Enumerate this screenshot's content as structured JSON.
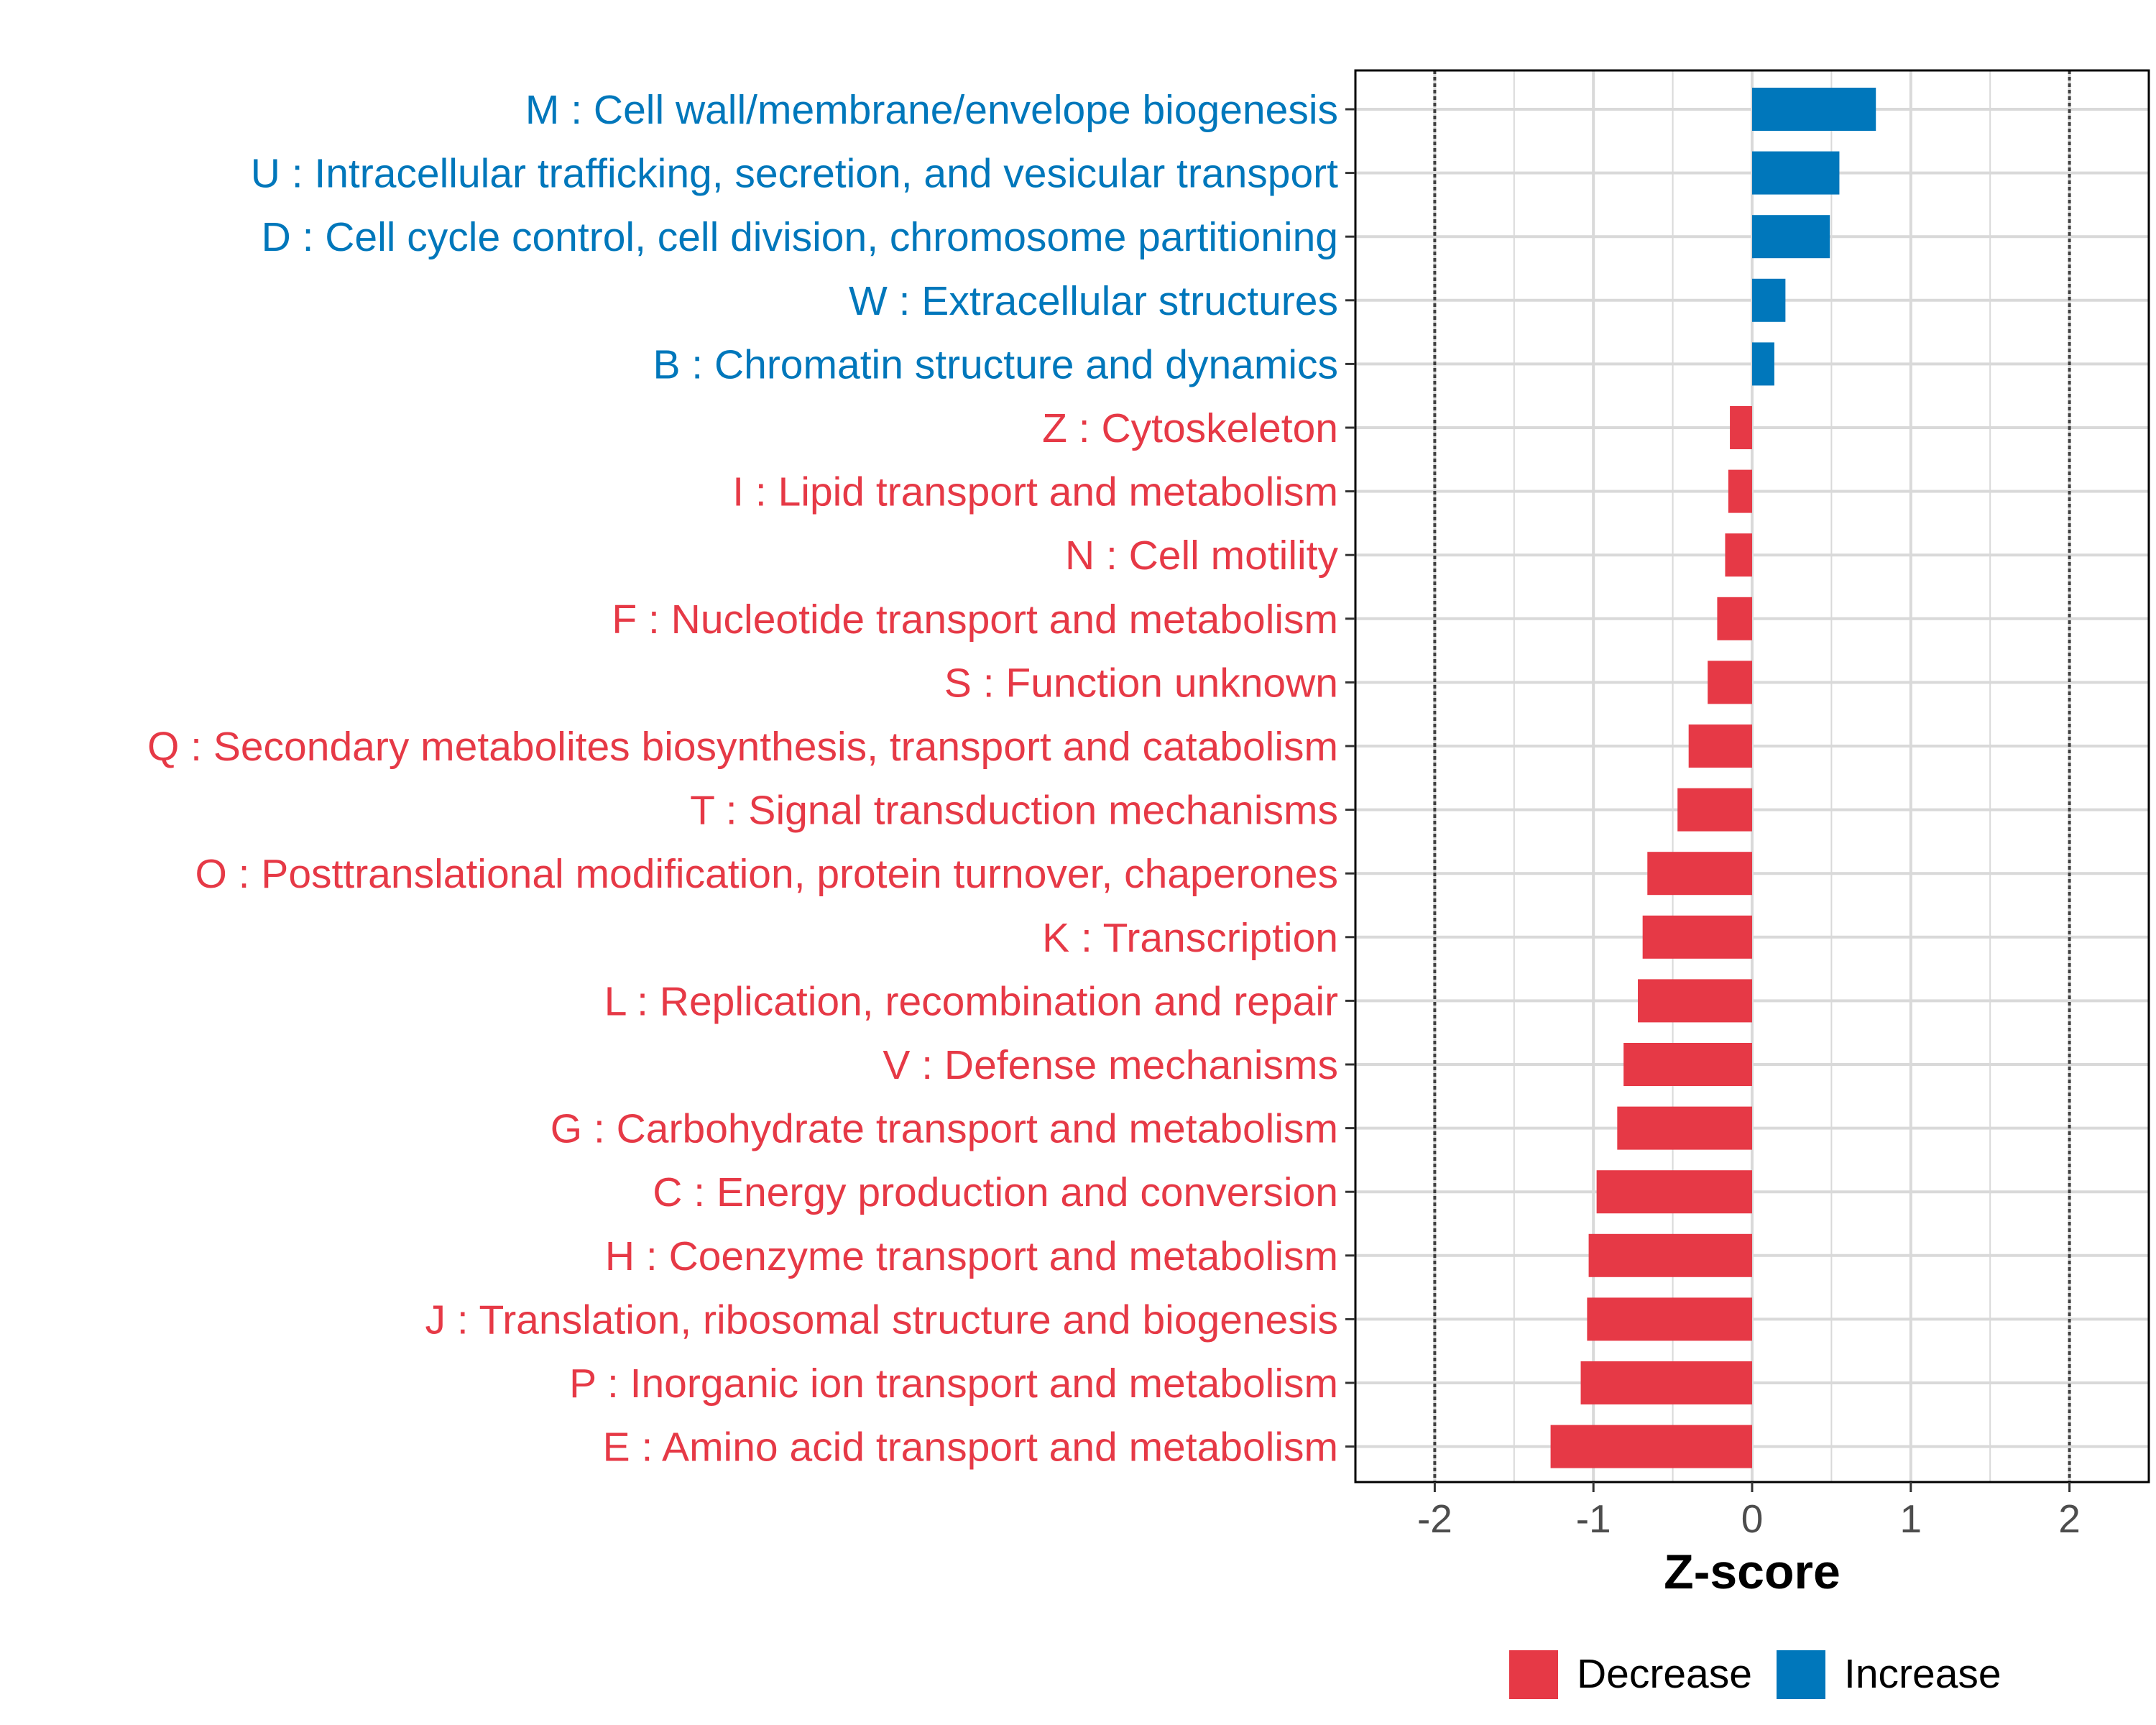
{
  "chart_data": {
    "type": "bar",
    "orientation": "horizontal",
    "title": "",
    "xlabel": "Z-score",
    "ylabel": "",
    "xlim": [
      -2.5,
      2.5
    ],
    "xticks": [
      -2,
      -1,
      0,
      1,
      2
    ],
    "xtick_labels": [
      "-2",
      "-1",
      "0",
      "1",
      "2"
    ],
    "reference_lines": [
      -2,
      2
    ],
    "grid": true,
    "legend": {
      "placement": "bottom",
      "entries": [
        {
          "key": "Decrease",
          "label": "Decrease"
        },
        {
          "key": "Increase",
          "label": "Increase"
        }
      ]
    },
    "colors": {
      "Decrease": "#e63946",
      "Increase": "#0077bb",
      "grid": "#d9d9d9",
      "reference": "#404040"
    },
    "categories": [
      {
        "label": "M : Cell wall/membrane/envelope biogenesis",
        "value": 0.78,
        "group": "Increase"
      },
      {
        "label": "U : Intracellular trafficking, secretion, and vesicular transport",
        "value": 0.55,
        "group": "Increase"
      },
      {
        "label": "D : Cell cycle control, cell division, chromosome partitioning",
        "value": 0.49,
        "group": "Increase"
      },
      {
        "label": "W : Extracellular structures",
        "value": 0.21,
        "group": "Increase"
      },
      {
        "label": "B : Chromatin structure and dynamics",
        "value": 0.14,
        "group": "Increase"
      },
      {
        "label": "Z : Cytoskeleton",
        "value": -0.14,
        "group": "Decrease"
      },
      {
        "label": "I : Lipid transport and metabolism",
        "value": -0.15,
        "group": "Decrease"
      },
      {
        "label": "N : Cell motility",
        "value": -0.17,
        "group": "Decrease"
      },
      {
        "label": "F : Nucleotide transport and metabolism",
        "value": -0.22,
        "group": "Decrease"
      },
      {
        "label": "S : Function unknown",
        "value": -0.28,
        "group": "Decrease"
      },
      {
        "label": "Q : Secondary metabolites biosynthesis, transport and catabolism",
        "value": -0.4,
        "group": "Decrease"
      },
      {
        "label": "T : Signal transduction mechanisms",
        "value": -0.47,
        "group": "Decrease"
      },
      {
        "label": "O : Posttranslational modification, protein turnover, chaperones",
        "value": -0.66,
        "group": "Decrease"
      },
      {
        "label": "K : Transcription",
        "value": -0.69,
        "group": "Decrease"
      },
      {
        "label": "L : Replication, recombination and repair",
        "value": -0.72,
        "group": "Decrease"
      },
      {
        "label": "V : Defense mechanisms",
        "value": -0.81,
        "group": "Decrease"
      },
      {
        "label": "G : Carbohydrate transport and metabolism",
        "value": -0.85,
        "group": "Decrease"
      },
      {
        "label": "C : Energy production and conversion",
        "value": -0.98,
        "group": "Decrease"
      },
      {
        "label": "H : Coenzyme transport and metabolism",
        "value": -1.03,
        "group": "Decrease"
      },
      {
        "label": "J : Translation, ribosomal structure and biogenesis",
        "value": -1.04,
        "group": "Decrease"
      },
      {
        "label": "P : Inorganic ion transport and metabolism",
        "value": -1.08,
        "group": "Decrease"
      },
      {
        "label": "E : Amino acid transport and metabolism",
        "value": -1.27,
        "group": "Decrease"
      }
    ]
  }
}
